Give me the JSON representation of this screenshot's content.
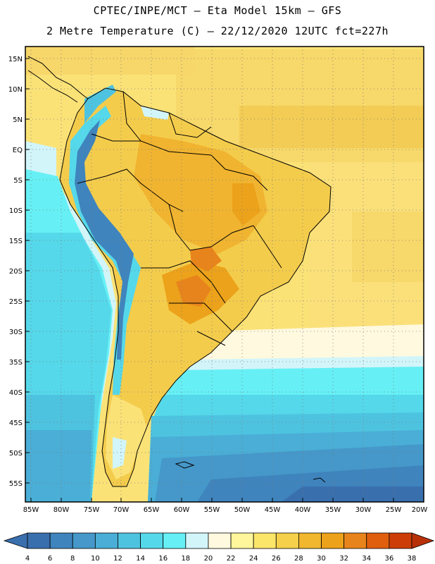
{
  "header": {
    "line1": "CPTEC/INPE/MCT –  Eta Model 15km – GFS",
    "line2": "2 Metre Temperature (C) – 22/12/2020 12UTC fct=227h"
  },
  "map": {
    "lat_labels": [
      "15N",
      "10N",
      "5N",
      "EQ",
      "5S",
      "10S",
      "15S",
      "20S",
      "25S",
      "30S",
      "35S",
      "40S",
      "45S",
      "50S",
      "55S"
    ],
    "lon_labels": [
      "85W",
      "80W",
      "75W",
      "70W",
      "65W",
      "60W",
      "55W",
      "50W",
      "45W",
      "40W",
      "35W",
      "30W",
      "25W",
      "20W"
    ],
    "lat_range": [
      17,
      -58
    ],
    "lon_range": [
      -86,
      -20
    ]
  },
  "colorbar": {
    "labels": [
      "4",
      "6",
      "8",
      "10",
      "12",
      "14",
      "16",
      "18",
      "20",
      "22",
      "24",
      "26",
      "28",
      "30",
      "32",
      "34",
      "36",
      "38"
    ],
    "colors": [
      "#3a6fae",
      "#3f84bd",
      "#4598c9",
      "#4aaed6",
      "#4ec3e0",
      "#55d8ea",
      "#66f0f5",
      "#d2f5fa",
      "#fff9df",
      "#fff59a",
      "#fbe66a",
      "#f5d04a",
      "#f0b72f",
      "#eca21a",
      "#e8841c",
      "#df5f0e",
      "#cc3d08"
    ],
    "low_color": "#3a6fae",
    "high_color": "#b83008"
  }
}
